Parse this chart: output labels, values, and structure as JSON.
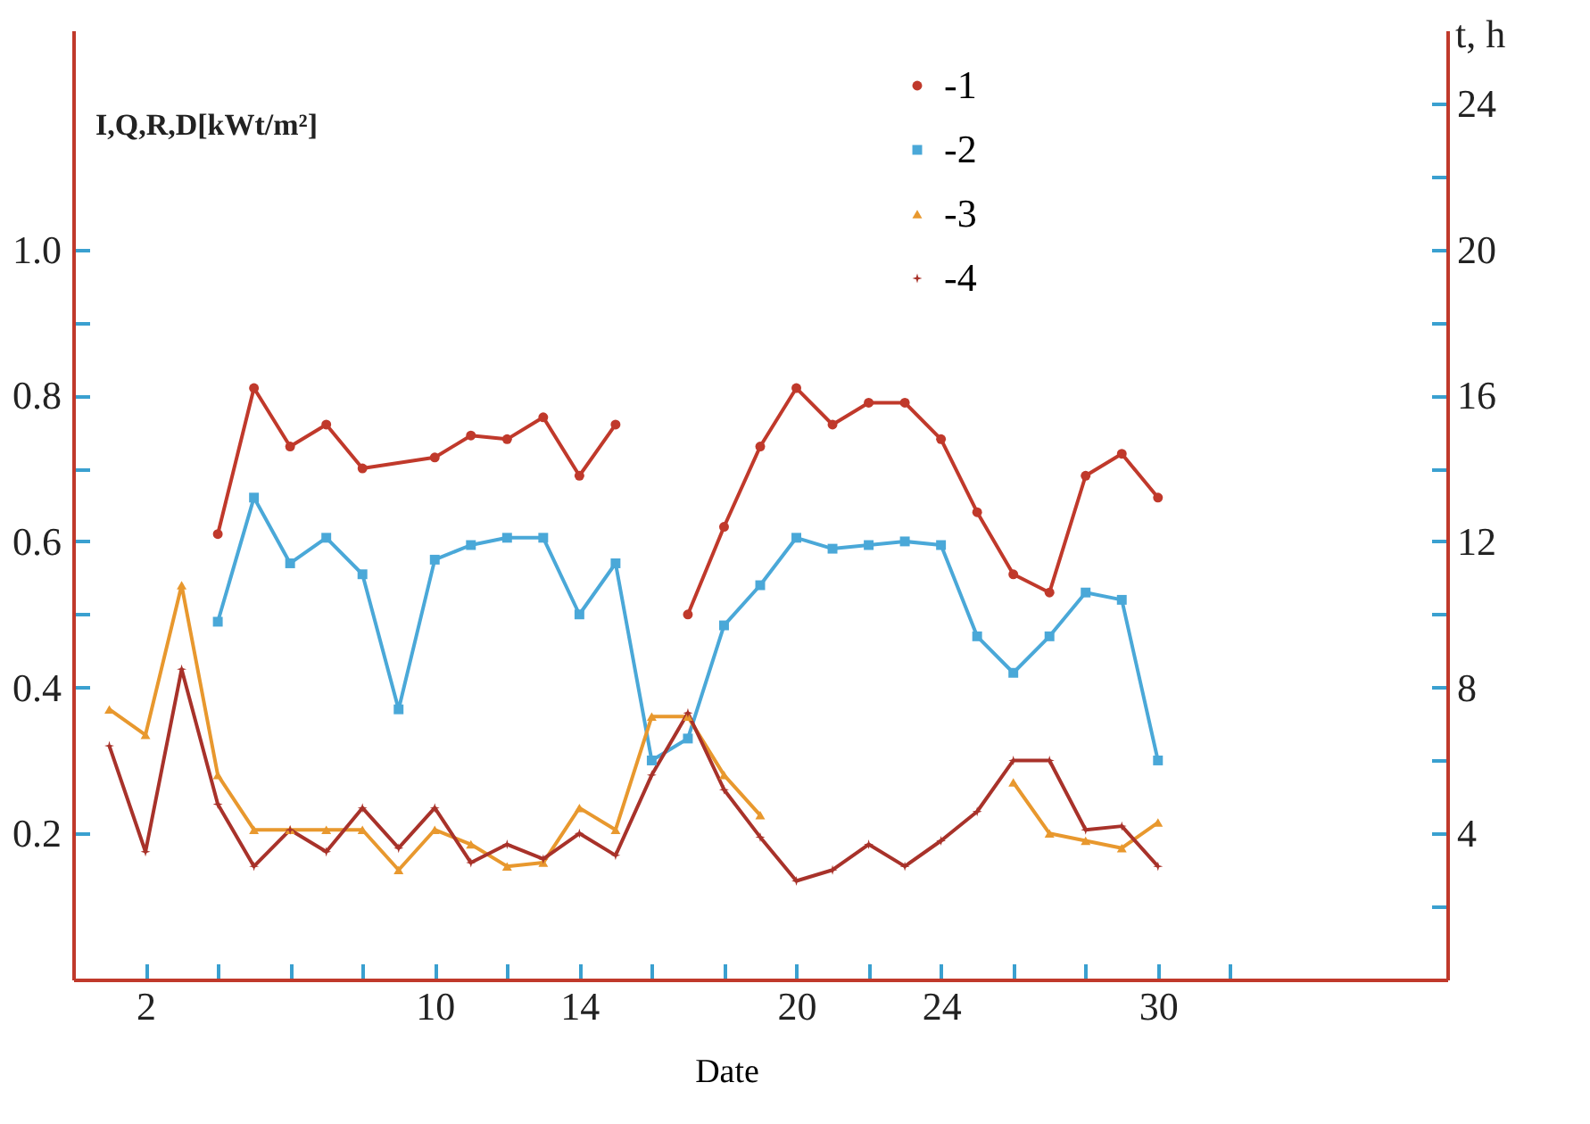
{
  "chart_data": {
    "type": "line",
    "xlabel": "Date",
    "ylabel": "I,Q,R,D[kWt/m²]",
    "y2label": "t, h",
    "x": [
      1,
      2,
      3,
      4,
      5,
      6,
      7,
      8,
      9,
      10,
      11,
      12,
      13,
      14,
      15,
      16,
      17,
      18,
      19,
      20,
      21,
      22,
      23,
      24,
      25,
      26,
      27,
      28,
      29,
      30
    ],
    "xlim": [
      0,
      38
    ],
    "xticks": [
      2,
      {
        "value": 4,
        "label": null
      },
      {
        "value": 6,
        "label": null
      },
      {
        "value": 8,
        "label": null
      },
      10,
      {
        "value": 12,
        "label": null
      },
      14,
      {
        "value": 16,
        "label": null
      },
      {
        "value": 18,
        "label": null
      },
      20,
      {
        "value": 22,
        "label": null
      },
      24,
      {
        "value": 26,
        "label": null
      },
      {
        "value": 28,
        "label": null
      },
      30,
      {
        "value": 32,
        "label": null
      }
    ],
    "ylim": [
      0,
      1.3
    ],
    "yticks": [
      0.2,
      0.4,
      {
        "value": 0.5,
        "label": null
      },
      0.6,
      {
        "value": 0.7,
        "label": null
      },
      0.8,
      {
        "value": 0.9,
        "label": null
      },
      {
        "value": 1,
        "label": "1.0"
      }
    ],
    "y2lim": [
      0,
      26
    ],
    "y2ticks": [
      {
        "value": 2,
        "label": null
      },
      4,
      {
        "value": 6,
        "label": null
      },
      8,
      {
        "value": 10,
        "label": null
      },
      12,
      {
        "value": 14,
        "label": null
      },
      16,
      {
        "value": 18,
        "label": null
      },
      20,
      {
        "value": 22,
        "label": null
      },
      24
    ],
    "legend": "top",
    "series": [
      {
        "name": "-1",
        "color": "#c0392b",
        "marker": "circle",
        "x": [
          4,
          5,
          6,
          7,
          8,
          10,
          11,
          12,
          13,
          14,
          15,
          16,
          17,
          18,
          19,
          20,
          21,
          22,
          23,
          24,
          25,
          26,
          27,
          28,
          29,
          30
        ],
        "values": [
          0.61,
          0.81,
          0.73,
          0.76,
          0.7,
          0.715,
          0.745,
          0.74,
          0.77,
          0.69,
          0.76,
          null,
          0.5,
          0.62,
          0.73,
          0.81,
          0.76,
          0.79,
          0.79,
          0.74,
          0.64,
          0.555,
          0.53,
          0.69,
          0.72,
          0.66
        ]
      },
      {
        "name": "-2",
        "color": "#4aa8d8",
        "marker": "square",
        "values": [
          null,
          null,
          null,
          0.49,
          0.66,
          0.57,
          0.605,
          0.555,
          0.37,
          0.575,
          0.595,
          0.605,
          0.605,
          0.5,
          0.57,
          0.3,
          0.33,
          0.485,
          0.54,
          0.605,
          0.59,
          0.595,
          0.6,
          0.595,
          0.47,
          0.42,
          0.47,
          0.53,
          0.52,
          0.3
        ]
      },
      {
        "name": "-3",
        "color": "#e8982e",
        "marker": "triangle",
        "values": [
          0.37,
          0.335,
          0.54,
          0.28,
          0.205,
          0.205,
          0.205,
          0.205,
          0.15,
          0.205,
          0.185,
          0.155,
          0.16,
          0.235,
          0.205,
          0.36,
          0.36,
          0.28,
          0.225,
          null,
          null,
          null,
          null,
          null,
          null,
          0.27,
          0.2,
          0.19,
          0.18,
          0.215
        ]
      },
      {
        "name": "-4",
        "color": "#a8322a",
        "marker": "star",
        "values": [
          0.32,
          0.175,
          0.425,
          0.24,
          0.155,
          0.205,
          0.175,
          0.235,
          0.18,
          0.235,
          0.16,
          0.185,
          0.165,
          0.2,
          0.17,
          0.28,
          0.365,
          0.26,
          0.195,
          0.135,
          0.15,
          0.185,
          0.155,
          0.19,
          0.23,
          0.3,
          0.3,
          0.205,
          0.21,
          0.155
        ]
      }
    ]
  }
}
